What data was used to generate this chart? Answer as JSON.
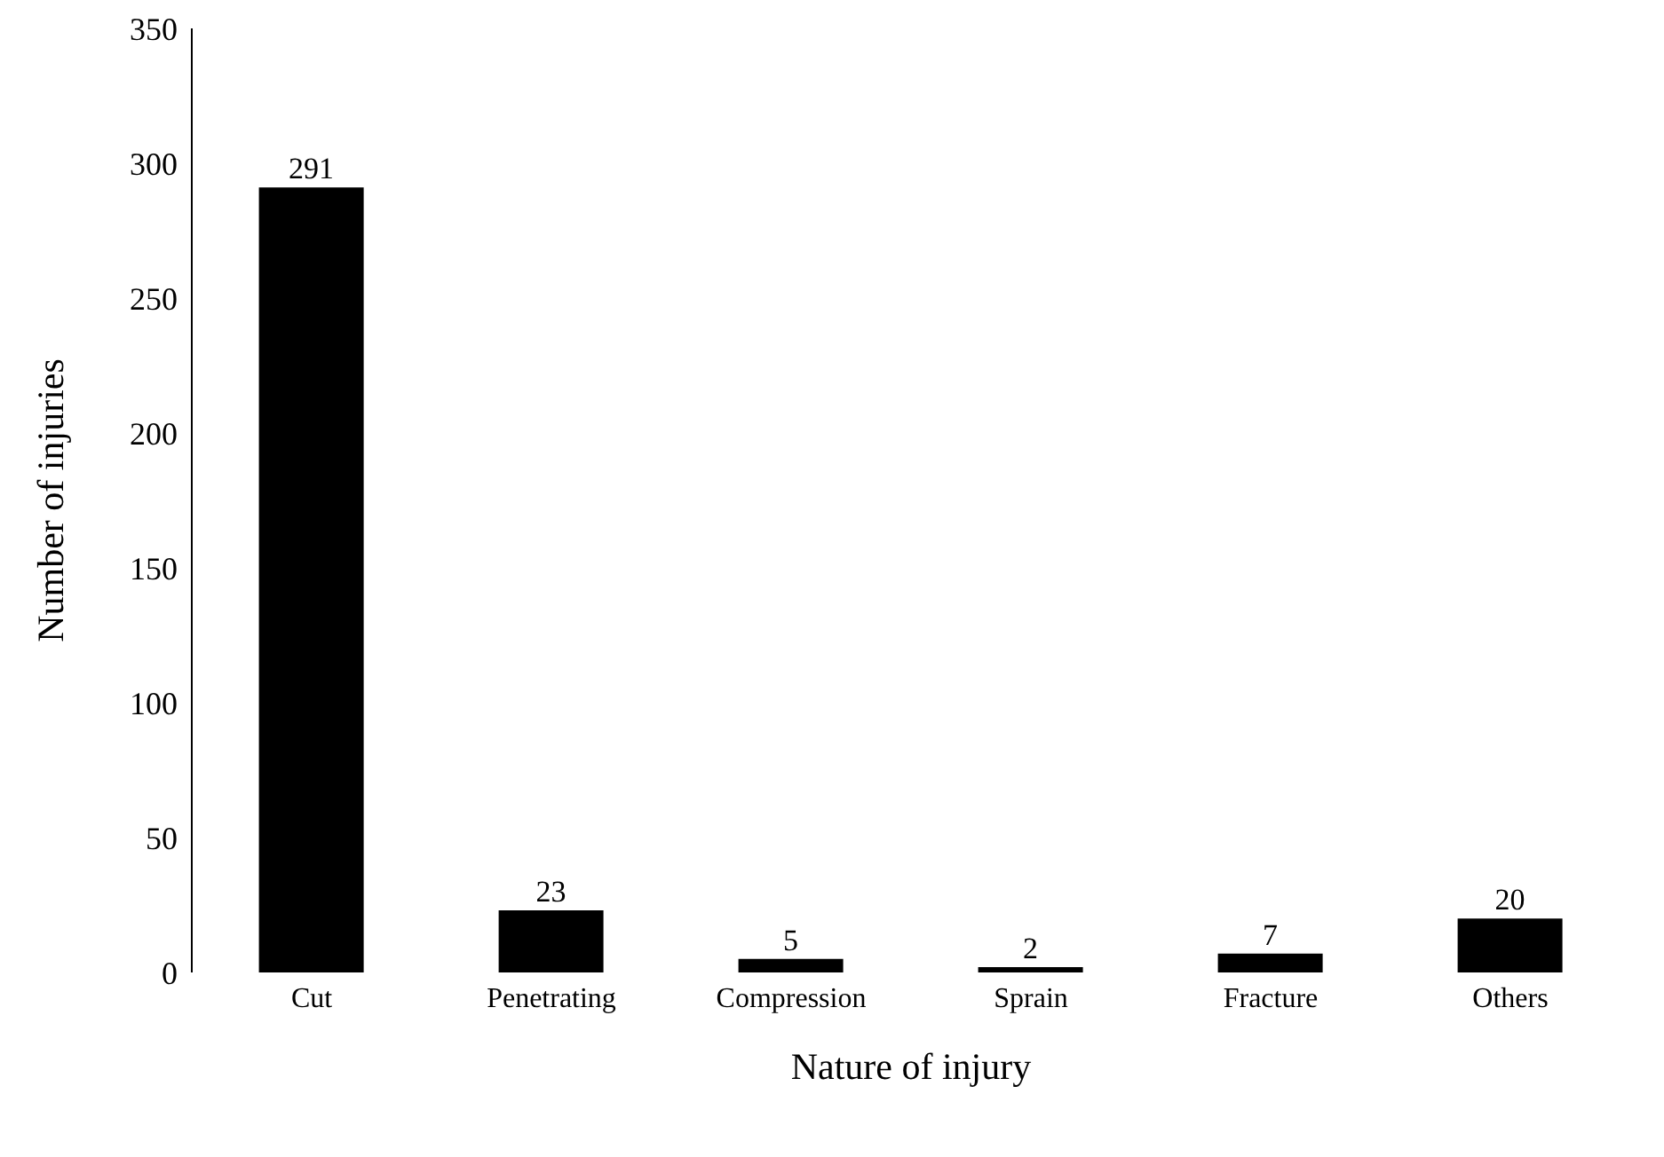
{
  "chart_data": {
    "type": "bar",
    "xlabel": "Nature of injury",
    "ylabel": "Number of injuries",
    "categories": [
      "Cut",
      "Penetrating",
      "Compression",
      "Sprain",
      "Fracture",
      "Others"
    ],
    "values": [
      291,
      23,
      5,
      2,
      7,
      20
    ],
    "color": "#000000",
    "ylim": [
      0,
      350
    ],
    "yticks": [
      0,
      50,
      100,
      150,
      200,
      250,
      300,
      350
    ],
    "data_labels": true
  }
}
